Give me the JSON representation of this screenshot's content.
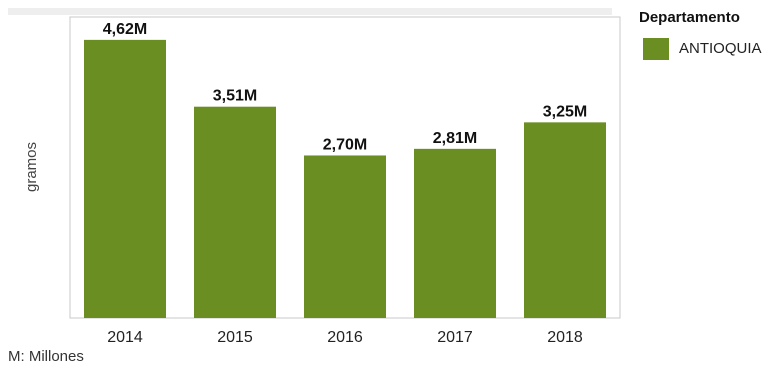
{
  "chart_data": {
    "type": "bar",
    "categories": [
      "2014",
      "2015",
      "2016",
      "2017",
      "2018"
    ],
    "values": [
      4.62,
      3.51,
      2.7,
      2.81,
      3.25
    ],
    "data_labels": [
      "4,62M",
      "3,51M",
      "2,70M",
      "2,81M",
      "3,25M"
    ],
    "unit": "M",
    "ylabel": "gramos",
    "ylim": [
      0,
      5.0
    ],
    "grid": false,
    "legend": {
      "title": "Departamento",
      "entries": [
        "ANTIOQUIA"
      ],
      "position": "right"
    },
    "footnote": "M: Millones"
  },
  "colors": {
    "bar": "#6b8e23",
    "plot_border": "#c8c8c8",
    "top_band": "#eeeeee"
  }
}
